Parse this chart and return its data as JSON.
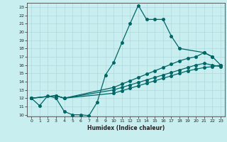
{
  "xlabel": "Humidex (Indice chaleur)",
  "bg_color": "#c8eef0",
  "line_color": "#006666",
  "grid_color": "#b0d8dc",
  "xlim": [
    -0.5,
    23.5
  ],
  "ylim": [
    9.8,
    23.5
  ],
  "yticks": [
    10,
    11,
    12,
    13,
    14,
    15,
    16,
    17,
    18,
    19,
    20,
    21,
    22,
    23
  ],
  "xticks": [
    0,
    1,
    2,
    3,
    4,
    5,
    6,
    7,
    8,
    9,
    10,
    11,
    12,
    13,
    14,
    15,
    16,
    17,
    18,
    19,
    20,
    21,
    22,
    23
  ],
  "main_x": [
    0,
    1,
    2,
    3,
    4,
    5,
    6,
    7,
    8,
    9,
    10,
    11,
    12,
    13,
    14,
    15,
    16,
    17,
    18,
    21,
    22
  ],
  "main_y": [
    12.0,
    11.1,
    12.3,
    12.0,
    10.4,
    10.0,
    10.0,
    9.9,
    11.5,
    14.8,
    16.3,
    18.7,
    21.0,
    23.2,
    21.5,
    21.5,
    21.5,
    19.5,
    18.0,
    17.5,
    17.0
  ],
  "upper_x": [
    0,
    3,
    4,
    10,
    11,
    12,
    13,
    14,
    15,
    16,
    17,
    18,
    19,
    20,
    21,
    22,
    23
  ],
  "upper_y": [
    12.0,
    12.3,
    12.0,
    13.3,
    13.7,
    14.1,
    14.5,
    14.9,
    15.3,
    15.7,
    16.1,
    16.5,
    16.8,
    17.0,
    17.5,
    17.0,
    16.0
  ],
  "mid_x": [
    0,
    3,
    4,
    10,
    11,
    12,
    13,
    14,
    15,
    16,
    17,
    18,
    19,
    20,
    21,
    22,
    23
  ],
  "mid_y": [
    12.0,
    12.3,
    12.0,
    13.0,
    13.3,
    13.6,
    13.9,
    14.2,
    14.5,
    14.8,
    15.1,
    15.4,
    15.7,
    16.0,
    16.2,
    16.0,
    15.8
  ],
  "lower_x": [
    0,
    3,
    4,
    10,
    11,
    12,
    13,
    14,
    15,
    16,
    17,
    18,
    19,
    20,
    21,
    22,
    23
  ],
  "lower_y": [
    12.0,
    12.3,
    12.0,
    12.6,
    12.9,
    13.2,
    13.5,
    13.8,
    14.1,
    14.4,
    14.7,
    15.0,
    15.3,
    15.5,
    15.7,
    15.8,
    16.0
  ],
  "marker_size": 2.5,
  "linewidth": 0.9
}
